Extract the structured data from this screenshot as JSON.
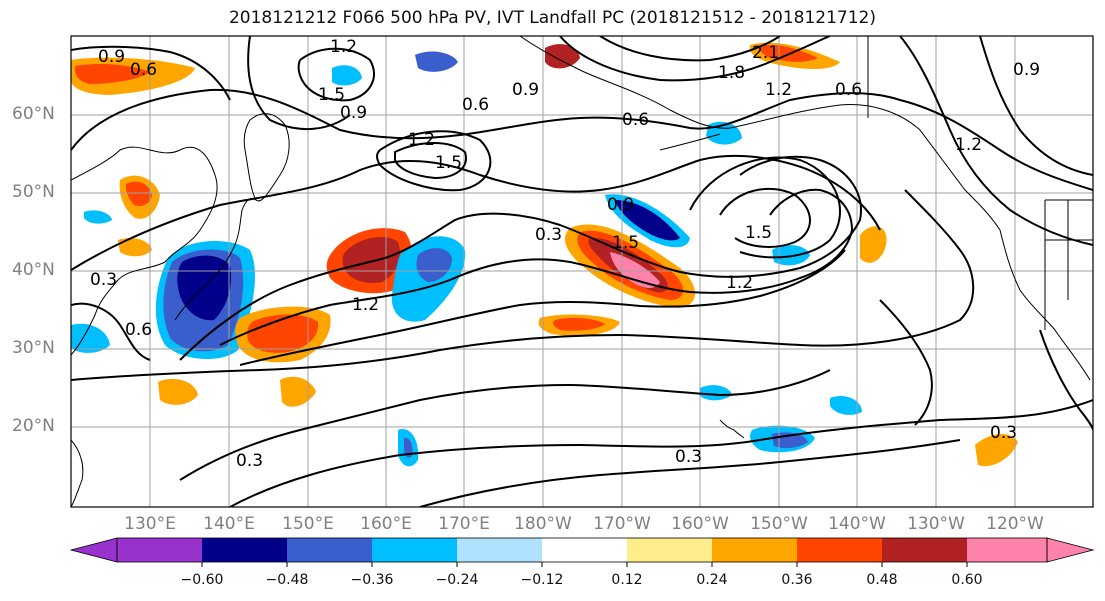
{
  "title": "2018121212 F066 500 hPa PV, IVT Landfall PC (2018121512 - 2018121712)",
  "lat_labels": [
    "60°N",
    "50°N",
    "40°N",
    "30°N",
    "20°N"
  ],
  "lon_labels": [
    "130°E",
    "140°E",
    "150°E",
    "160°E",
    "170°E",
    "180°W",
    "170°W",
    "160°W",
    "150°W",
    "140°W",
    "130°W",
    "120°W"
  ],
  "contour_labels": [
    "0.9",
    "0.6",
    "1.2",
    "1.5",
    "0.9",
    "0.6",
    "2.1",
    "1.8",
    "1.2",
    "0.6",
    "0.9",
    "1.2",
    "0.6",
    "0.9",
    "1.2",
    "1.5",
    "0.9",
    "0.3",
    "1.5",
    "1.5",
    "1.2",
    "1.2",
    "0.3",
    "0.6",
    "0.3",
    "0.3",
    "0.3",
    "0.6"
  ],
  "colorbar": {
    "colors": [
      "#9932cc",
      "#00008b",
      "#3a5fcd",
      "#00bfff",
      "#b0e2ff",
      "#ffffff",
      "#ffec8b",
      "#ffa500",
      "#ff4500",
      "#b22222",
      "#ff82ab"
    ],
    "ticks": [
      "−0.60",
      "−0.48",
      "−0.36",
      "−0.24",
      "−0.12",
      "0.12",
      "0.24",
      "0.36",
      "0.48",
      "0.60"
    ]
  }
}
